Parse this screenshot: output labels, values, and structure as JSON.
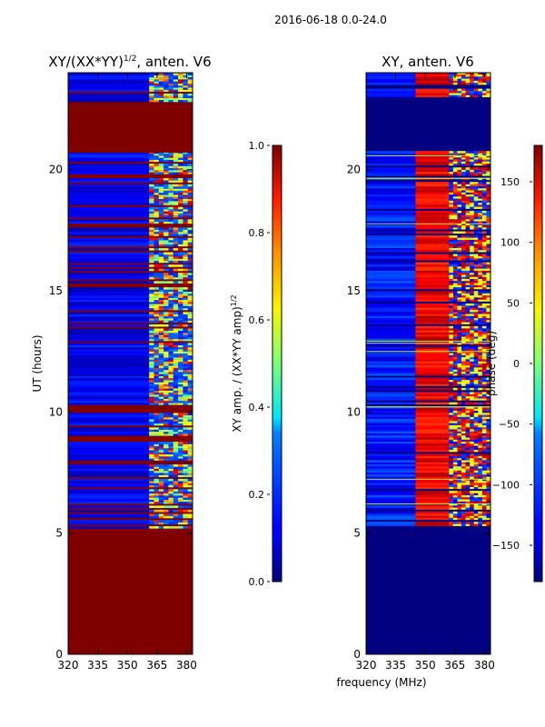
{
  "figure_title": "2016-06-18 0.0-24.0",
  "xlabel_shared": "frequency (MHz)",
  "chart_data": [
    {
      "type": "heatmap",
      "title_main": "XY/(XX*YY)",
      "title_sup": "1/2",
      "title_rest": ", anten. V6",
      "ylabel": "UT (hours)",
      "xlim": [
        320,
        383
      ],
      "ylim": [
        0,
        24
      ],
      "xticks": [
        "320",
        "335",
        "350",
        "365",
        "380"
      ],
      "xtick_values": [
        320,
        335,
        350,
        365,
        380
      ],
      "yticks": [
        "0",
        "5",
        "10",
        "15",
        "20"
      ],
      "ytick_values": [
        0,
        5,
        10,
        15,
        20
      ],
      "background_value": 1.0,
      "data_band_hours": [
        5.2,
        20.7
      ],
      "data_bands_extra_hours": [
        [
          22.8,
          24.0
        ]
      ],
      "feature_freq_range_mhz": [
        361,
        383
      ],
      "colorbar": {
        "label_main": "XY amp. / (XX*YY amp)",
        "label_sup": "1/2",
        "range": [
          0.0,
          1.0
        ],
        "ticks": [
          "0.0",
          "0.2",
          "0.4",
          "0.6",
          "0.8",
          "1.0"
        ],
        "tick_values": [
          0.0,
          0.2,
          0.4,
          0.6,
          0.8,
          1.0
        ]
      }
    },
    {
      "type": "heatmap",
      "title": "XY, anten. V6",
      "xlim": [
        320,
        383
      ],
      "ylim": [
        0,
        24
      ],
      "xticks": [
        "320",
        "335",
        "350",
        "365",
        "380"
      ],
      "xtick_values": [
        320,
        335,
        350,
        365,
        380
      ],
      "yticks": [
        "0",
        "5",
        "10",
        "15",
        "20"
      ],
      "ytick_values": [
        0,
        5,
        10,
        15,
        20
      ],
      "empty_value": -180,
      "data_band_hours": [
        5.3,
        20.8
      ],
      "data_bands_extra_hours": [
        [
          23.0,
          24.0
        ]
      ],
      "colorbar": {
        "label": "phase (deg)",
        "range": [
          -180,
          180
        ],
        "ticks": [
          "−150",
          "−100",
          "−50",
          "0",
          "50",
          "100",
          "150"
        ],
        "tick_values": [
          -150,
          -100,
          -50,
          0,
          50,
          100,
          150
        ]
      }
    }
  ]
}
